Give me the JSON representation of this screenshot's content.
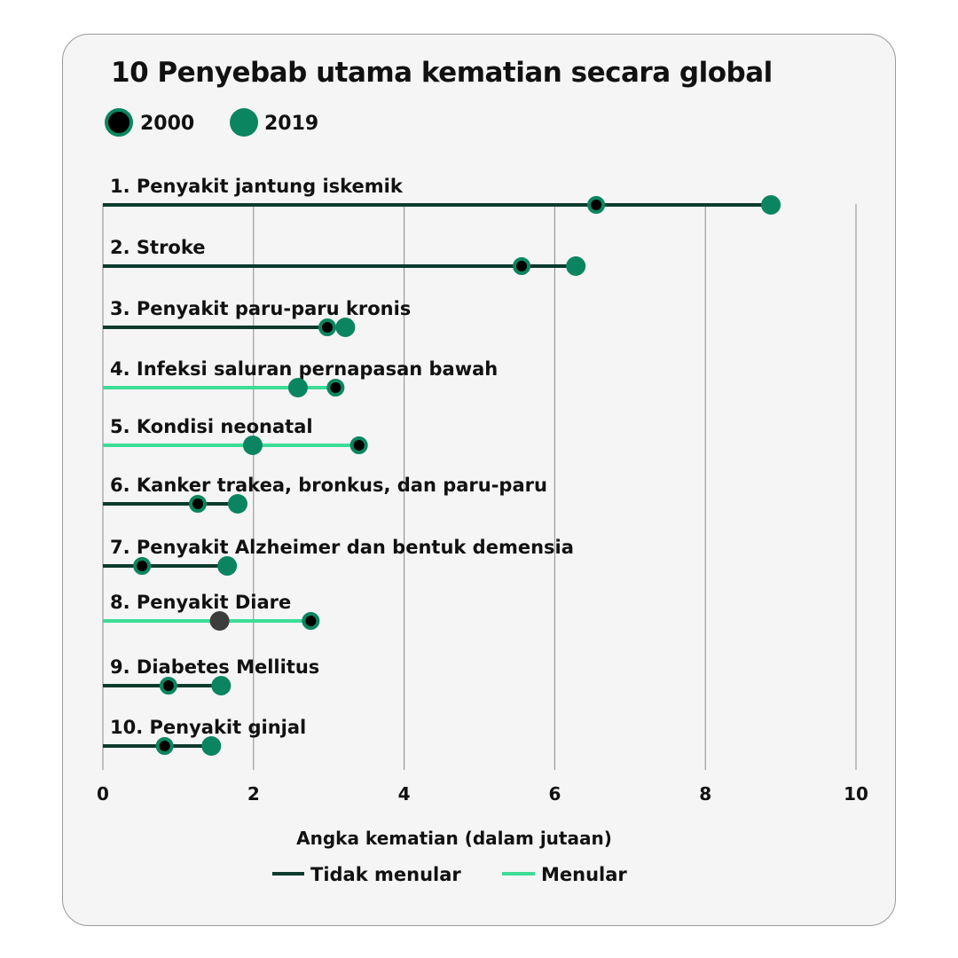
{
  "chart_data": {
    "type": "dumbbell",
    "title": "10 Penyebab utama kematian secara global",
    "xlabel": "Angka kematian (dalam jutaan)",
    "xlim": [
      0,
      10
    ],
    "xticks": [
      "0",
      "2",
      "4",
      "6",
      "8",
      "10"
    ],
    "grid": true,
    "legend_years": [
      {
        "name": "2000",
        "marker": "black dot with green ring"
      },
      {
        "name": "2019",
        "marker": "green dot"
      }
    ],
    "legend_types": [
      {
        "name": "Tidak menular",
        "color": "#0d3b2e"
      },
      {
        "name": "Menular",
        "color": "#3ddc97"
      }
    ],
    "colors": {
      "noncommunicable": "#0d3b2e",
      "communicable": "#3ddc97",
      "dot2019": "#0a8560",
      "dot2000": "#000000",
      "diare2019": "#3d3d3d"
    },
    "categories": [
      {
        "label": "1. Penyakit jantung iskemik",
        "type": "Tidak menular",
        "v2000": 6.55,
        "v2019": 8.87
      },
      {
        "label": "2. Stroke",
        "type": "Tidak menular",
        "v2000": 5.56,
        "v2019": 6.28
      },
      {
        "label": "3. Penyakit paru-paru kronis",
        "type": "Tidak menular",
        "v2000": 2.98,
        "v2019": 3.22
      },
      {
        "label": "4. Infeksi saluran pernapasan bawah",
        "type": "Menular",
        "v2000": 3.09,
        "v2019": 2.59
      },
      {
        "label": "5. Kondisi neonatal",
        "type": "Menular",
        "v2000": 3.4,
        "v2019": 1.99
      },
      {
        "label": "6. Kanker trakea, bronkus, dan paru-paru",
        "type": "Tidak menular",
        "v2000": 1.26,
        "v2019": 1.79
      },
      {
        "label": "7. Penyakit Alzheimer dan bentuk demensia",
        "type": "Tidak menular",
        "v2000": 0.52,
        "v2019": 1.65
      },
      {
        "label": "8. Penyakit Diare",
        "type": "Menular",
        "v2000": 2.76,
        "v2019": 1.55
      },
      {
        "label": "9. Diabetes Mellitus",
        "type": "Tidak menular",
        "v2000": 0.87,
        "v2019": 1.57
      },
      {
        "label": "10. Penyakit ginjal",
        "type": "Tidak menular",
        "v2000": 0.82,
        "v2019": 1.44
      }
    ]
  }
}
